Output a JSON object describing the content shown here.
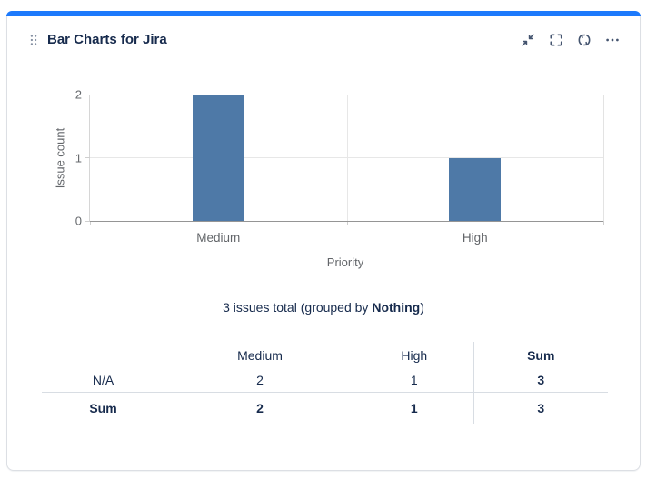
{
  "card": {
    "title": "Bar Charts for Jira",
    "accent_color": "#1D7AFC",
    "toolbar": {
      "buttons": [
        {
          "icon": "collapse-icon",
          "label": "Collapse"
        },
        {
          "icon": "fullscreen-icon",
          "label": "Full screen"
        },
        {
          "icon": "refresh-icon",
          "label": "Refresh"
        },
        {
          "icon": "more-options-icon",
          "label": "More options"
        }
      ]
    }
  },
  "chart_data": {
    "type": "bar",
    "categories": [
      "Medium",
      "High"
    ],
    "values": [
      2,
      1
    ],
    "title": "",
    "xlabel": "Priority",
    "ylabel": "Issue count",
    "ylim": [
      0,
      2
    ],
    "yticks": [
      0,
      1,
      2
    ],
    "bar_color": "#4E79A7",
    "grid": true,
    "legend": false
  },
  "summary": {
    "before_bold": "3 issues total (grouped by ",
    "bold": "Nothing",
    "after_bold": ")"
  },
  "table": {
    "columns": [
      "",
      "Medium",
      "High",
      "Sum"
    ],
    "rows": [
      {
        "header": "N/A",
        "cells": [
          "2",
          "1",
          "3"
        ],
        "emphasized": false
      },
      {
        "header": "Sum",
        "cells": [
          "2",
          "1",
          "3"
        ],
        "emphasized": true
      }
    ]
  }
}
